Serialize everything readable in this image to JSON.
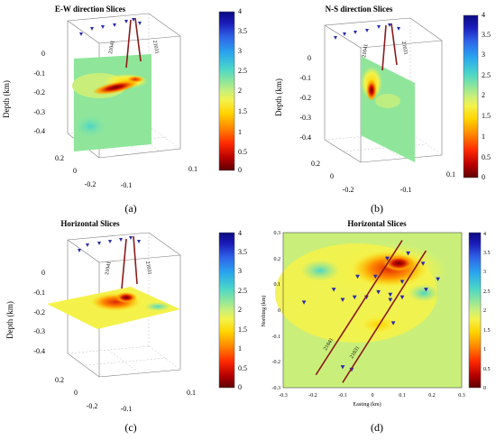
{
  "colormap": {
    "stops": [
      "#5c0000",
      "#b80000",
      "#ff2a00",
      "#ff8a00",
      "#ffd400",
      "#f4f24a",
      "#c9ef7a",
      "#8fe69a",
      "#4ad6c8",
      "#2aa6ee",
      "#2f63e8",
      "#1a1ab8",
      "#0a0a80"
    ],
    "ticks": [
      "0",
      "0.5",
      "1",
      "1.5",
      "2",
      "2.5",
      "3",
      "3.5",
      "4"
    ]
  },
  "chart_data": [
    {
      "type": "heatmap",
      "panel": "(a)",
      "title": "E-W direction Slices",
      "view": "3d",
      "slice": "vertical east-west plane",
      "zlabel": "Depth (km)",
      "z_ticks": [
        "0",
        "-0.1",
        "-0.2",
        "-0.3",
        "-0.4"
      ],
      "x_ticks": [
        "-0.2",
        "0",
        "0.2"
      ],
      "y_ticks": [
        "-0.1",
        "0",
        "0.1"
      ],
      "colorbar_range": [
        0,
        4
      ],
      "annotations": [
        "21041",
        "21031"
      ]
    },
    {
      "type": "heatmap",
      "panel": "(b)",
      "title": "N-S direction Slices",
      "view": "3d",
      "slice": "vertical north-south plane",
      "zlabel": "Depth (km)",
      "z_ticks": [
        "0",
        "-0.1",
        "-0.2",
        "-0.3",
        "-0.4"
      ],
      "x_ticks": [
        "-0.2",
        "0",
        "0.2"
      ],
      "y_ticks": [
        "-0.1",
        "0",
        "0.1"
      ],
      "colorbar_range": [
        0,
        4
      ],
      "annotations": [
        "21041",
        "21031"
      ]
    },
    {
      "type": "heatmap",
      "panel": "(c)",
      "title": "Horizontal Slices",
      "view": "3d",
      "slice": "horizontal plane",
      "zlabel": "Depth (km)",
      "z_ticks": [
        "0",
        "-0.1",
        "-0.2",
        "-0.3",
        "-0.4"
      ],
      "x_ticks": [
        "-0.2",
        "0",
        "0.2"
      ],
      "y_ticks": [
        "-0.1",
        "0",
        "0.1"
      ],
      "colorbar_range": [
        0,
        4
      ],
      "annotations": [
        "21041",
        "21031"
      ]
    },
    {
      "type": "heatmap",
      "panel": "(d)",
      "title": "Horizontal Slices",
      "view": "map",
      "xlabel": "Easting (km)",
      "ylabel": "Northing (km)",
      "xlim": [
        -0.3,
        0.3
      ],
      "ylim": [
        -0.3,
        0.3
      ],
      "x_ticks": [
        "-0.3",
        "-0.2",
        "-0.1",
        "0",
        "0.1",
        "0.2",
        "0.3"
      ],
      "y_ticks": [
        "-0.3",
        "-0.2",
        "-0.1",
        "0",
        "0.1",
        "0.2",
        "0.3"
      ],
      "colorbar_range": [
        0,
        4
      ],
      "stations": [
        {
          "x": 0.12,
          "y": 0.22
        },
        {
          "x": 0.05,
          "y": 0.2
        },
        {
          "x": 0.17,
          "y": 0.18
        },
        {
          "x": -0.05,
          "y": 0.13
        },
        {
          "x": 0.01,
          "y": 0.13
        },
        {
          "x": 0.1,
          "y": 0.11
        },
        {
          "x": 0.22,
          "y": 0.12
        },
        {
          "x": -0.13,
          "y": 0.08
        },
        {
          "x": -0.1,
          "y": 0.04
        },
        {
          "x": -0.06,
          "y": 0.05
        },
        {
          "x": -0.02,
          "y": 0.05
        },
        {
          "x": 0.02,
          "y": 0.07
        },
        {
          "x": 0.06,
          "y": 0.06
        },
        {
          "x": 0.1,
          "y": 0.05
        },
        {
          "x": 0.18,
          "y": 0.08
        },
        {
          "x": -0.23,
          "y": 0.03
        },
        {
          "x": 0.06,
          "y": 0.04
        },
        {
          "x": 0.07,
          "y": -0.05
        },
        {
          "x": -0.07,
          "y": -0.23
        },
        {
          "x": -0.1,
          "y": -0.22
        }
      ],
      "faults": [
        {
          "label": "21041",
          "from": [
            -0.19,
            -0.25
          ],
          "to": [
            0.1,
            0.27
          ]
        },
        {
          "label": "21031",
          "from": [
            -0.1,
            -0.28
          ],
          "to": [
            0.18,
            0.23
          ]
        }
      ]
    }
  ],
  "captions": [
    "(a)",
    "(b)",
    "(c)",
    "(d)"
  ]
}
